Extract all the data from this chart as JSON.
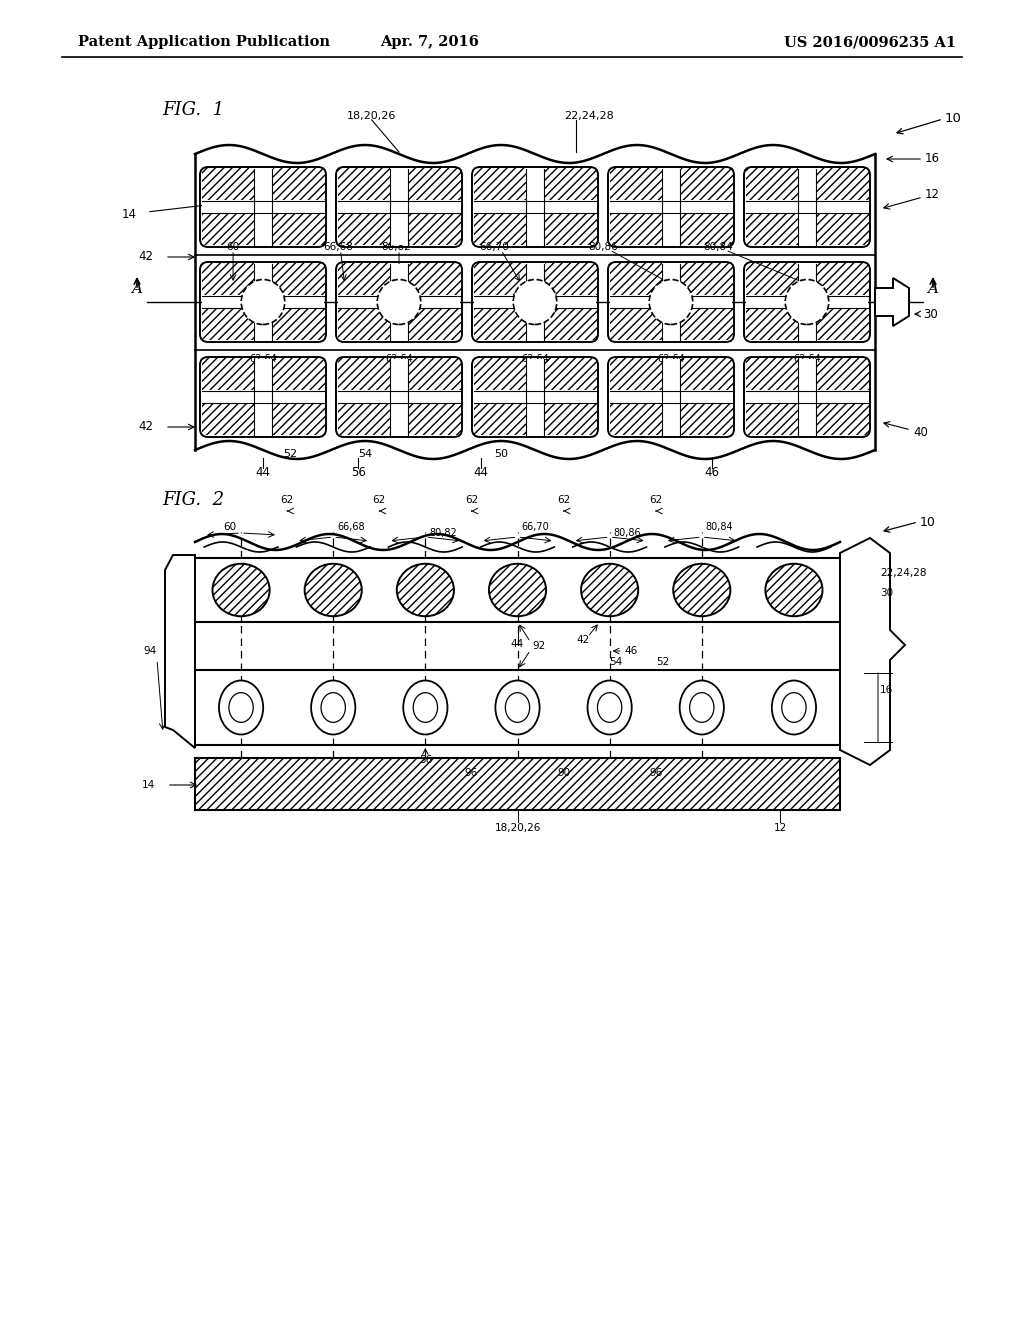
{
  "title_left": "Patent Application Publication",
  "title_center": "Apr. 7, 2016",
  "title_right": "US 2016/0096235 A1",
  "fig1_label": "FIG.  1",
  "fig2_label": "FIG.  2",
  "bg_color": "#ffffff"
}
